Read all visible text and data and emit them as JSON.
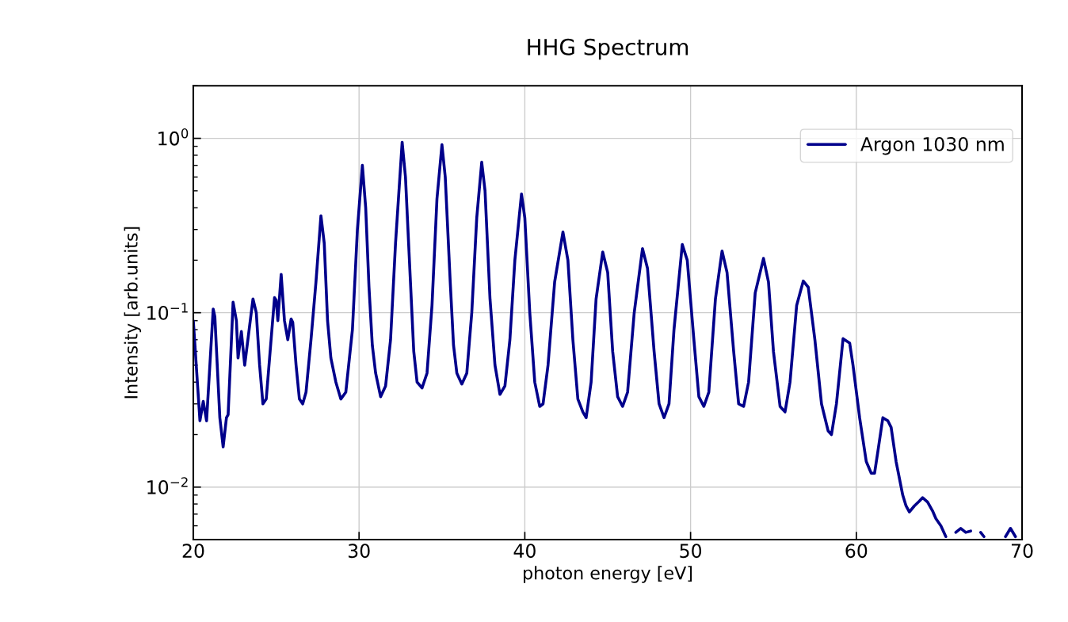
{
  "chart_data": {
    "type": "line",
    "title": "HHG Spectrum",
    "xlabel": "photon energy [eV]",
    "ylabel": "Intensity [arb.units]",
    "log": "y",
    "xlim": [
      20,
      70
    ],
    "ylim": [
      0.005,
      2
    ],
    "xticks": [
      20,
      30,
      40,
      50,
      60,
      70
    ],
    "yticks": [
      {
        "value": 0.01,
        "label": "10$^{−2}$"
      },
      {
        "value": 0.1,
        "label": "10$^{−1}$"
      },
      {
        "value": 1,
        "label": "10$^{0}$"
      }
    ],
    "grid": true,
    "legend": "top right",
    "line_style": "solid",
    "marker": "none",
    "x": [
      20.0,
      20.4,
      20.6,
      20.8,
      21.2,
      21.3,
      21.6,
      21.8,
      22.0,
      22.1,
      22.4,
      22.6,
      22.7,
      22.9,
      23.1,
      23.6,
      23.8,
      24.0,
      24.2,
      24.4,
      24.9,
      25.0,
      25.1,
      25.3,
      25.5,
      25.7,
      25.9,
      26.0,
      26.2,
      26.4,
      26.6,
      26.8,
      27.1,
      27.4,
      27.7,
      27.9,
      28.1,
      28.3,
      28.6,
      28.9,
      29.2,
      29.6,
      29.9,
      30.2,
      30.4,
      30.6,
      30.8,
      31.0,
      31.3,
      31.6,
      31.9,
      32.2,
      32.6,
      32.8,
      33.1,
      33.3,
      33.5,
      33.8,
      34.1,
      34.4,
      34.7,
      35.0,
      35.2,
      35.5,
      35.7,
      35.9,
      36.2,
      36.5,
      36.8,
      37.1,
      37.4,
      37.6,
      37.9,
      38.2,
      38.5,
      38.8,
      39.1,
      39.4,
      39.8,
      40.0,
      40.3,
      40.6,
      40.9,
      41.1,
      41.4,
      41.8,
      42.3,
      42.6,
      42.9,
      43.2,
      43.5,
      43.7,
      44.0,
      44.3,
      44.7,
      45.0,
      45.3,
      45.6,
      45.9,
      46.2,
      46.6,
      47.1,
      47.4,
      47.8,
      48.1,
      48.4,
      48.7,
      49.0,
      49.5,
      49.8,
      50.2,
      50.5,
      50.8,
      51.1,
      51.5,
      51.9,
      52.2,
      52.6,
      52.9,
      53.2,
      53.5,
      53.9,
      54.4,
      54.7,
      55.0,
      55.4,
      55.7,
      56.0,
      56.4,
      56.8,
      57.1,
      57.5,
      57.9,
      58.3,
      58.5,
      58.8,
      59.2,
      59.6,
      59.8,
      60.2,
      60.6,
      60.9,
      61.1,
      61.3,
      61.6,
      61.9,
      62.1,
      62.4,
      62.8,
      63.0,
      63.2,
      63.5,
      63.8,
      64.0,
      64.3,
      64.6,
      64.8,
      65.1,
      65.4,
      65.7,
      66.0,
      66.3,
      66.6,
      66.9,
      67.2,
      67.5,
      67.7,
      68.0,
      69.0,
      69.3,
      69.6
    ],
    "series": [
      {
        "name": "Argon 1030 nm",
        "color": "#00008b",
        "values": [
          0.09,
          0.024,
          0.031,
          0.024,
          0.105,
          0.095,
          0.025,
          0.017,
          0.025,
          0.026,
          0.115,
          0.09,
          0.055,
          0.078,
          0.05,
          0.12,
          0.1,
          0.05,
          0.03,
          0.032,
          0.122,
          0.118,
          0.09,
          0.166,
          0.09,
          0.07,
          0.092,
          0.088,
          0.05,
          0.032,
          0.03,
          0.035,
          0.07,
          0.15,
          0.36,
          0.25,
          0.09,
          0.055,
          0.04,
          0.032,
          0.035,
          0.08,
          0.3,
          0.7,
          0.4,
          0.14,
          0.065,
          0.045,
          0.033,
          0.038,
          0.07,
          0.25,
          0.95,
          0.6,
          0.15,
          0.06,
          0.04,
          0.037,
          0.045,
          0.11,
          0.45,
          0.92,
          0.6,
          0.15,
          0.065,
          0.045,
          0.039,
          0.045,
          0.1,
          0.35,
          0.73,
          0.5,
          0.12,
          0.05,
          0.034,
          0.038,
          0.07,
          0.2,
          0.48,
          0.35,
          0.1,
          0.04,
          0.029,
          0.03,
          0.05,
          0.15,
          0.29,
          0.2,
          0.07,
          0.032,
          0.027,
          0.025,
          0.04,
          0.12,
          0.223,
          0.17,
          0.06,
          0.033,
          0.029,
          0.035,
          0.1,
          0.233,
          0.18,
          0.06,
          0.03,
          0.025,
          0.03,
          0.08,
          0.246,
          0.2,
          0.07,
          0.033,
          0.029,
          0.035,
          0.12,
          0.226,
          0.17,
          0.06,
          0.03,
          0.029,
          0.04,
          0.13,
          0.205,
          0.15,
          0.06,
          0.029,
          0.027,
          0.04,
          0.11,
          0.152,
          0.14,
          0.07,
          0.03,
          0.021,
          0.02,
          0.03,
          0.071,
          0.067,
          0.05,
          0.025,
          0.014,
          0.012,
          0.012,
          0.016,
          0.025,
          0.024,
          0.022,
          0.014,
          0.009,
          0.0078,
          0.0072,
          0.0078,
          0.0083,
          0.0087,
          0.0082,
          0.0073,
          0.0066,
          0.006,
          0.0052,
          null,
          0.0055,
          0.0058,
          0.0055,
          0.0056,
          null,
          0.0055,
          0.0052,
          null,
          0.0052,
          0.0058,
          0.0052
        ]
      }
    ]
  }
}
